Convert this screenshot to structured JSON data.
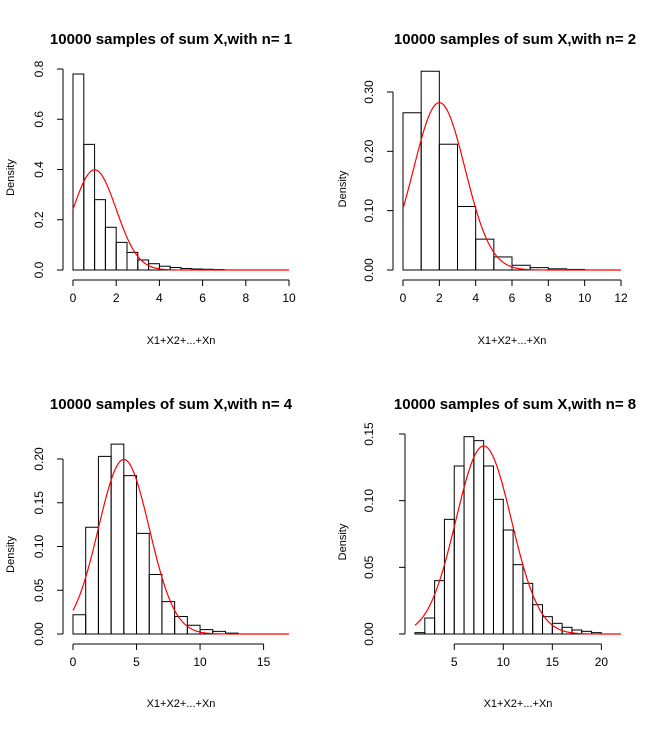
{
  "page": {
    "background": "#ffffff",
    "curve_color": "#ff0000",
    "bar_stroke": "#000000"
  },
  "chart_data": [
    {
      "type": "bar",
      "title": "10000 samples of sum X,with n=  1",
      "xlabel": "X1+X2+...+Xn",
      "ylabel": "Density",
      "xlim": [
        0,
        10
      ],
      "ylim": [
        0,
        0.8
      ],
      "xticks": [
        "0",
        "2",
        "4",
        "6",
        "8",
        "10"
      ],
      "yticks": [
        "0.0",
        "0.2",
        "0.4",
        "0.6",
        "0.8"
      ],
      "bin_width": 0.5,
      "bin_start": 0,
      "densities": [
        0.78,
        0.5,
        0.28,
        0.17,
        0.11,
        0.07,
        0.04,
        0.025,
        0.015,
        0.01,
        0.006,
        0.004,
        0.003,
        0.002
      ],
      "curve": {
        "type": "normal",
        "mean": 1,
        "sd": 1
      }
    },
    {
      "type": "bar",
      "title": "10000 samples of sum X,with n=  2",
      "xlabel": "X1+X2+...+Xn",
      "ylabel": "Density",
      "xlim": [
        0,
        12
      ],
      "ylim": [
        0,
        0.3
      ],
      "xticks": [
        "0",
        "2",
        "4",
        "6",
        "8",
        "10",
        "12"
      ],
      "yticks": [
        "0.00",
        "0.10",
        "0.20",
        "0.30"
      ],
      "bin_width": 1,
      "bin_start": 0,
      "densities": [
        0.265,
        0.335,
        0.212,
        0.107,
        0.052,
        0.022,
        0.008,
        0.004,
        0.002,
        0.001
      ],
      "curve": {
        "type": "normal",
        "mean": 2,
        "sd": 1.4142
      }
    },
    {
      "type": "bar",
      "title": "10000 samples of sum X,with n=  4",
      "xlabel": "X1+X2+...+Xn",
      "ylabel": "Density",
      "xlim": [
        0,
        17
      ],
      "ylim": [
        0,
        0.2
      ],
      "xticks": [
        "0",
        "5",
        "10",
        "15"
      ],
      "yticks": [
        "0.00",
        "0.05",
        "0.10",
        "0.15",
        "0.20"
      ],
      "bin_width": 1,
      "bin_start": 0,
      "densities": [
        0.022,
        0.122,
        0.203,
        0.217,
        0.181,
        0.115,
        0.068,
        0.037,
        0.02,
        0.01,
        0.005,
        0.003,
        0.001
      ],
      "curve": {
        "type": "normal",
        "mean": 4,
        "sd": 2
      }
    },
    {
      "type": "bar",
      "title": "10000 samples of sum X,with n=  8",
      "xlabel": "X1+X2+...+Xn",
      "ylabel": "Density",
      "xlim": [
        1,
        22
      ],
      "ylim": [
        0,
        0.15
      ],
      "xticks": [
        "5",
        "10",
        "15",
        "20"
      ],
      "yticks": [
        "0.00",
        "0.05",
        "0.10",
        "0.15"
      ],
      "bin_width": 1,
      "bin_start": 1,
      "densities": [
        0.001,
        0.012,
        0.04,
        0.086,
        0.126,
        0.148,
        0.145,
        0.126,
        0.101,
        0.078,
        0.052,
        0.038,
        0.022,
        0.013,
        0.008,
        0.005,
        0.003,
        0.002,
        0.001
      ],
      "curve": {
        "type": "normal",
        "mean": 8,
        "sd": 2.8284
      }
    }
  ]
}
